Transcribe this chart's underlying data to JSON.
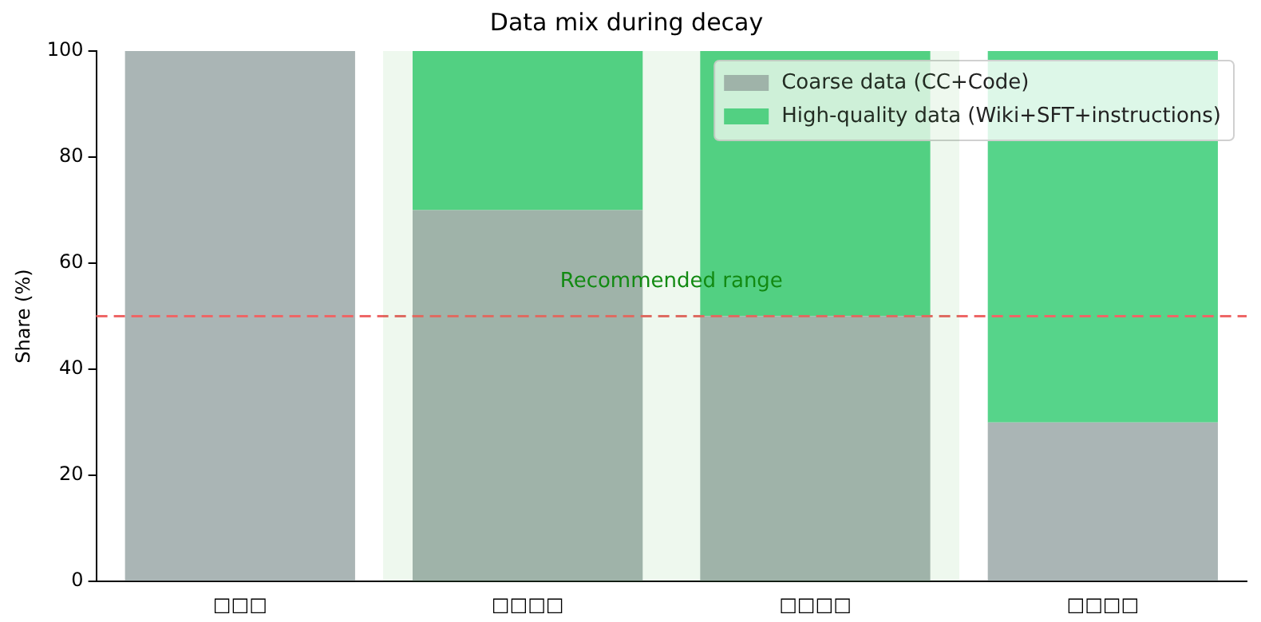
{
  "chart_data": {
    "type": "bar",
    "title": "Data mix during decay",
    "ylabel": "Share (%)",
    "categories": [
      "□□□",
      "□□□□",
      "□□□□",
      "□□□□"
    ],
    "stacked": true,
    "series": [
      {
        "name": "Coarse data (CC+Code)",
        "color": "#aab5b5",
        "values": [
          100,
          70,
          50,
          30
        ]
      },
      {
        "name": "High-quality data (Wiki+SFT+instructions)",
        "color": "#56d48a",
        "values": [
          0,
          30,
          50,
          70
        ]
      }
    ],
    "ylim": [
      0,
      100
    ],
    "yticks": [
      0,
      20,
      40,
      60,
      80,
      100
    ],
    "ref_lines": [
      {
        "axis": "y",
        "value": 50,
        "color": "#ee6666",
        "line_style": "dashed"
      }
    ],
    "annotations": [
      "Recommended range"
    ],
    "legend": "top right",
    "grid": false
  }
}
